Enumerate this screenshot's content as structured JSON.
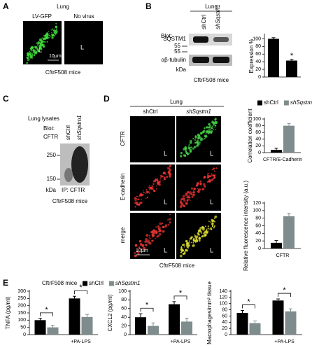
{
  "panels": {
    "a": {
      "label": "A",
      "title": "Lung",
      "columns": [
        "LV-GFP",
        "No virus"
      ],
      "lumen": [
        "L",
        "L"
      ],
      "scale_bar": "10μm",
      "caption": "CftrF508 mice"
    },
    "b": {
      "label": "B",
      "title": "Lung",
      "blot": "Blot:",
      "lanes": [
        "shCtrl",
        "shSqstm1"
      ],
      "rows": [
        "SQSTM1",
        "αβ-tubulin"
      ],
      "markers": [
        "55",
        "55"
      ],
      "unit": "kDa",
      "caption": "CftrF508 mice"
    },
    "c": {
      "label": "C",
      "title": "Lung lysates",
      "blot": "Blot:",
      "antibody": "CFTR",
      "lanes": [
        "shCtrl",
        "shSqstm1"
      ],
      "markers": [
        "250",
        "150"
      ],
      "unit": "kDa",
      "ip": "IP: CFTR",
      "caption": "CftrF508 mice"
    },
    "d": {
      "label": "D",
      "title": "Lung",
      "columns": [
        "shCtrl",
        "shSqstm1"
      ],
      "rows": [
        "CFTR",
        "E-cadherin",
        "merge"
      ],
      "lumen": [
        "L",
        "L",
        "L",
        "L",
        "L",
        "L"
      ],
      "scale_bar": "10μm",
      "caption": "CftrF508 mice"
    },
    "e": {
      "label": "E",
      "caption": "CftrF508 mice"
    }
  },
  "chart_data": [
    {
      "type": "bar",
      "ylabel": "Expression %",
      "categories": [
        null,
        null
      ],
      "ylim": [
        0,
        110
      ],
      "yticks": [
        0,
        20,
        40,
        60,
        80,
        100
      ],
      "series": [
        {
          "color": "#000000",
          "values": [
            100,
            43
          ],
          "errors": [
            3,
            3
          ]
        }
      ],
      "annotations": [
        "*"
      ]
    },
    {
      "type": "bar",
      "ylabel": "Correlation coefficient",
      "xlabel": "CFTR/E-Cadherin",
      "categories": [
        null
      ],
      "ylim": [
        0,
        100
      ],
      "yticks": [
        0,
        20,
        40,
        60,
        80,
        100
      ],
      "series": [
        {
          "name": "shCtrl",
          "color": "#000000",
          "values": [
            8
          ],
          "errors": [
            5
          ]
        },
        {
          "name": "shSqstm1",
          "color": "#7f8c8d",
          "values": [
            80
          ],
          "errors": [
            7
          ]
        }
      ]
    },
    {
      "type": "bar",
      "ylabel": "Relative fluorescence intensity (a.u.)",
      "xlabel": "CFTR",
      "categories": [
        null
      ],
      "ylim": [
        0,
        120
      ],
      "yticks": [
        0,
        20,
        40,
        60,
        80,
        100,
        120
      ],
      "series": [
        {
          "color": "#000000",
          "values": [
            15
          ],
          "errors": [
            6
          ]
        },
        {
          "color": "#7f8c8d",
          "values": [
            85
          ],
          "errors": [
            8
          ]
        }
      ]
    },
    {
      "type": "bar",
      "ylabel": "TNFA (pg/ml)",
      "categories": [
        null,
        "+PA-LPS"
      ],
      "ylim": [
        0,
        300
      ],
      "yticks": [
        0,
        50,
        100,
        150,
        200,
        250,
        300
      ],
      "series": [
        {
          "name": "shCtrl",
          "color": "#000000",
          "values": [
            100,
            250
          ],
          "errors": [
            12,
            15
          ]
        },
        {
          "name": "shSqstm1",
          "color": "#7f8c8d",
          "values": [
            50,
            122
          ],
          "errors": [
            15,
            18
          ]
        }
      ],
      "annotations": [
        "*",
        "*"
      ]
    },
    {
      "type": "bar",
      "ylabel": "CXCL2 (pg/ml)",
      "categories": [
        null,
        "+PA-LPS"
      ],
      "ylim": [
        0,
        100
      ],
      "yticks": [
        0,
        20,
        40,
        60,
        80,
        100
      ],
      "series": [
        {
          "color": "#000000",
          "values": [
            40,
            70
          ],
          "errors": [
            8,
            6
          ]
        },
        {
          "color": "#7f8c8d",
          "values": [
            20,
            30
          ],
          "errors": [
            7,
            8
          ]
        }
      ],
      "annotations": [
        "*",
        "*"
      ]
    },
    {
      "type": "bar",
      "ylabel": "Macrophages/mm² tissue",
      "categories": [
        null,
        "+PA-LPS"
      ],
      "ylim": [
        0,
        140
      ],
      "yticks": [
        0,
        20,
        40,
        60,
        80,
        100,
        120,
        140
      ],
      "series": [
        {
          "color": "#000000",
          "values": [
            70,
            110
          ],
          "errors": [
            8,
            5
          ]
        },
        {
          "color": "#7f8c8d",
          "values": [
            37,
            75
          ],
          "errors": [
            7,
            8
          ]
        }
      ],
      "annotations": [
        "*",
        "*"
      ]
    }
  ]
}
